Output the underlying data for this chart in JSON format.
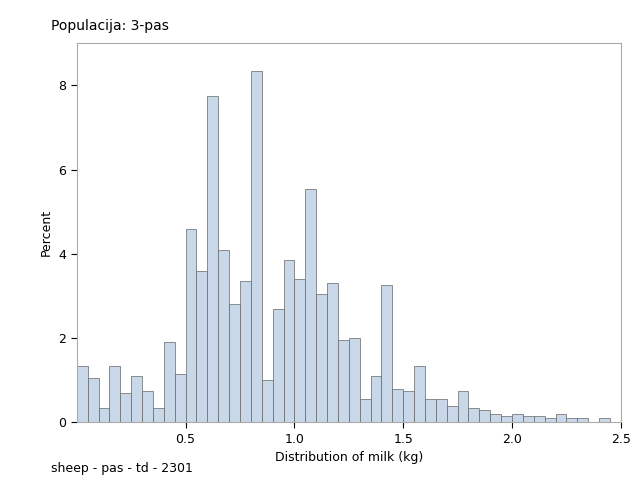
{
  "title": "Populacija: 3-pas",
  "xlabel": "Distribution of milk (kg)",
  "ylabel": "Percent",
  "footnote": "sheep - pas - td - 2301",
  "xlim": [
    0.0,
    2.5
  ],
  "ylim": [
    0.0,
    9.0
  ],
  "xticks": [
    0.5,
    1.0,
    1.5,
    2.0,
    2.5
  ],
  "yticks": [
    0,
    2,
    4,
    6,
    8
  ],
  "bar_width": 0.05,
  "bar_color": "#c8d8e8",
  "bar_edge_color": "#666666",
  "bar_edge_width": 0.5,
  "bins_left": [
    0.0,
    0.05,
    0.1,
    0.15,
    0.2,
    0.25,
    0.3,
    0.35,
    0.4,
    0.45,
    0.5,
    0.55,
    0.6,
    0.65,
    0.7,
    0.75,
    0.8,
    0.85,
    0.9,
    0.95,
    1.0,
    1.05,
    1.1,
    1.15,
    1.2,
    1.25,
    1.3,
    1.35,
    1.4,
    1.45,
    1.5,
    1.55,
    1.6,
    1.65,
    1.7,
    1.75,
    1.8,
    1.85,
    1.9,
    1.95,
    2.0,
    2.05,
    2.1,
    2.15,
    2.2,
    2.25,
    2.3,
    2.35,
    2.4,
    2.45
  ],
  "heights": [
    1.35,
    1.05,
    0.35,
    1.35,
    0.7,
    1.1,
    0.75,
    0.35,
    1.9,
    1.15,
    4.6,
    3.6,
    7.75,
    4.1,
    2.8,
    3.35,
    8.35,
    1.0,
    2.7,
    3.85,
    3.4,
    5.55,
    3.05,
    3.3,
    1.95,
    2.0,
    0.55,
    1.1,
    3.25,
    0.8,
    0.75,
    1.35,
    0.55,
    0.55,
    0.4,
    0.75,
    0.35,
    0.3,
    0.2,
    0.15,
    0.2,
    0.15,
    0.15,
    0.1,
    0.2,
    0.1,
    0.1,
    0.0,
    0.1,
    0.0
  ],
  "title_fontsize": 10,
  "label_fontsize": 9,
  "tick_fontsize": 9,
  "footnote_fontsize": 9,
  "background_color": "#ffffff"
}
